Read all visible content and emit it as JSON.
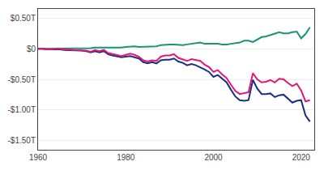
{
  "chart_data": {
    "type": "line",
    "x": [
      1960,
      1961,
      1962,
      1963,
      1964,
      1965,
      1966,
      1967,
      1968,
      1969,
      1970,
      1971,
      1972,
      1973,
      1974,
      1975,
      1976,
      1977,
      1978,
      1979,
      1980,
      1981,
      1982,
      1983,
      1984,
      1985,
      1986,
      1987,
      1988,
      1989,
      1990,
      1991,
      1992,
      1993,
      1994,
      1995,
      1996,
      1997,
      1998,
      1999,
      2000,
      2001,
      2002,
      2003,
      2004,
      2005,
      2006,
      2007,
      2008,
      2009,
      2010,
      2011,
      2012,
      2013,
      2014,
      2015,
      2016,
      2017,
      2018,
      2019,
      2020,
      2021,
      2022
    ],
    "series": [
      {
        "color": "#1a9470",
        "values": [
          0.0,
          0.0,
          0.0,
          0.0,
          0.01,
          0.01,
          0.01,
          0.01,
          0.01,
          0.01,
          0.01,
          0.01,
          0.01,
          0.02,
          0.02,
          0.02,
          0.02,
          0.02,
          0.02,
          0.02,
          0.03,
          0.04,
          0.04,
          0.03,
          0.03,
          0.03,
          0.03,
          0.04,
          0.06,
          0.07,
          0.07,
          0.07,
          0.06,
          0.06,
          0.07,
          0.08,
          0.09,
          0.1,
          0.08,
          0.08,
          0.08,
          0.08,
          0.07,
          0.07,
          0.08,
          0.09,
          0.1,
          0.13,
          0.13,
          0.11,
          0.15,
          0.19,
          0.2,
          0.22,
          0.24,
          0.27,
          0.25,
          0.25,
          0.27,
          0.28,
          0.17,
          0.24,
          0.35
        ]
      },
      {
        "color": "#1a2f80",
        "values": [
          0.0,
          0.0,
          -0.01,
          -0.01,
          -0.01,
          -0.01,
          -0.02,
          -0.02,
          -0.03,
          -0.03,
          -0.03,
          -0.04,
          -0.06,
          -0.04,
          -0.06,
          -0.04,
          -0.09,
          -0.11,
          -0.13,
          -0.14,
          -0.13,
          -0.12,
          -0.14,
          -0.16,
          -0.22,
          -0.24,
          -0.22,
          -0.24,
          -0.19,
          -0.18,
          -0.18,
          -0.16,
          -0.21,
          -0.23,
          -0.27,
          -0.25,
          -0.27,
          -0.3,
          -0.34,
          -0.38,
          -0.46,
          -0.43,
          -0.49,
          -0.55,
          -0.67,
          -0.78,
          -0.84,
          -0.85,
          -0.84,
          -0.51,
          -0.65,
          -0.74,
          -0.74,
          -0.73,
          -0.79,
          -0.76,
          -0.75,
          -0.81,
          -0.88,
          -0.85,
          -0.84,
          -1.09,
          -1.19
        ]
      },
      {
        "color": "#e0187a",
        "values": [
          0.0,
          0.0,
          -0.01,
          -0.01,
          0.0,
          0.0,
          -0.01,
          -0.01,
          -0.02,
          -0.02,
          -0.02,
          -0.03,
          -0.05,
          -0.02,
          -0.04,
          -0.02,
          -0.07,
          -0.09,
          -0.11,
          -0.12,
          -0.1,
          -0.08,
          -0.1,
          -0.13,
          -0.19,
          -0.21,
          -0.19,
          -0.2,
          -0.13,
          -0.11,
          -0.11,
          -0.09,
          -0.15,
          -0.17,
          -0.2,
          -0.17,
          -0.18,
          -0.2,
          -0.26,
          -0.3,
          -0.38,
          -0.35,
          -0.42,
          -0.48,
          -0.59,
          -0.69,
          -0.74,
          -0.72,
          -0.71,
          -0.4,
          -0.5,
          -0.55,
          -0.54,
          -0.51,
          -0.55,
          -0.49,
          -0.5,
          -0.56,
          -0.61,
          -0.57,
          -0.68,
          -0.86,
          -0.84
        ]
      }
    ],
    "xlim": [
      1960,
      2023
    ],
    "xticks": [
      1960,
      1980,
      2000,
      2020
    ],
    "ylim": [
      -1.65,
      0.65
    ],
    "yticks": [
      {
        "value": 0.5,
        "label": "$0.50T"
      },
      {
        "value": 0.0,
        "label": "$0"
      },
      {
        "value": -0.5,
        "label": "-$0.50T"
      },
      {
        "value": -1.0,
        "label": "-$1.00T"
      },
      {
        "value": -1.5,
        "label": "-$1.50T"
      }
    ],
    "grid": true
  }
}
